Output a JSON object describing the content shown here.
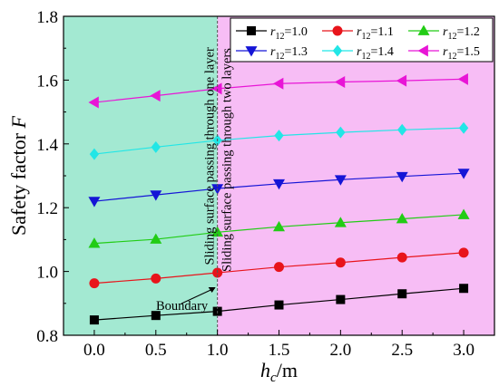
{
  "chart_data": {
    "type": "line",
    "xlabel_main": "h",
    "xlabel_sub": "c",
    "xlabel_unit": "/m",
    "ylabel_main": "Safety factor ",
    "ylabel_var": "F",
    "xlim": [
      -0.25,
      3.25
    ],
    "ylim": [
      0.8,
      1.8
    ],
    "x_ticks": [
      0.0,
      0.5,
      1.0,
      1.5,
      2.0,
      2.5,
      3.0
    ],
    "x_tick_labels": [
      "0.0",
      "0.5",
      "1.0",
      "1.5",
      "2.0",
      "2.5",
      "3.0"
    ],
    "y_ticks": [
      0.8,
      1.0,
      1.2,
      1.4,
      1.6,
      1.8
    ],
    "y_tick_labels": [
      "0.8",
      "1.0",
      "1.2",
      "1.4",
      "1.6",
      "1.8"
    ],
    "x": [
      0.0,
      0.5,
      1.0,
      1.5,
      2.0,
      2.5,
      3.0
    ],
    "legend_var": "r",
    "legend_sub": "12",
    "series": [
      {
        "name": "=1.0",
        "color": "#000000",
        "marker": "square",
        "values": [
          0.848,
          0.862,
          0.875,
          0.895,
          0.912,
          0.93,
          0.947
        ]
      },
      {
        "name": "=1.1",
        "color": "#e8141b",
        "marker": "circle",
        "values": [
          0.963,
          0.978,
          0.996,
          1.014,
          1.028,
          1.044,
          1.059
        ]
      },
      {
        "name": "=1.2",
        "color": "#22cc15",
        "marker": "triangle-up",
        "values": [
          1.088,
          1.101,
          1.123,
          1.14,
          1.153,
          1.165,
          1.178
        ]
      },
      {
        "name": "=1.3",
        "color": "#1515d6",
        "marker": "triangle-down",
        "values": [
          1.22,
          1.24,
          1.26,
          1.275,
          1.288,
          1.298,
          1.308
        ]
      },
      {
        "name": "=1.4",
        "color": "#22e6e6",
        "marker": "diamond",
        "values": [
          1.368,
          1.39,
          1.411,
          1.426,
          1.436,
          1.444,
          1.45
        ]
      },
      {
        "name": "=1.5",
        "color": "#e815d6",
        "marker": "triangle-left",
        "values": [
          1.53,
          1.551,
          1.573,
          1.589,
          1.594,
          1.598,
          1.603
        ]
      }
    ],
    "regions": [
      {
        "from": -0.25,
        "to": 1.0,
        "color": "#a3e9d2"
      },
      {
        "from": 1.0,
        "to": 3.25,
        "color": "#f7bdf5"
      }
    ],
    "boundary_x": 1.0,
    "annotations": {
      "one_layer": "Sliding surface passing through one layer",
      "two_layers": "Sliding surface passing through two layers",
      "boundary": "Boundary"
    },
    "grid": false,
    "legend_position": "top-right"
  }
}
